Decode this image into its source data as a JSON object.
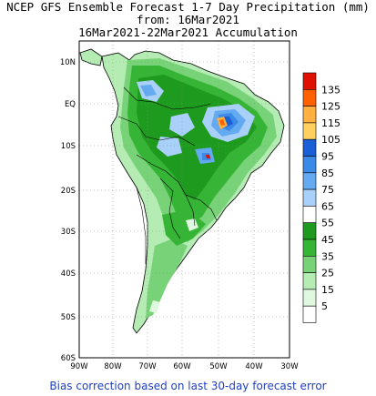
{
  "title": {
    "line1": "NCEP GFS Ensemble Forecast 1-7 Day Precipitation (mm)",
    "line2": "from: 16Mar2021",
    "line3": "16Mar2021-22Mar2021 Accumulation"
  },
  "map": {
    "lat_labels": [
      "10N",
      "EQ",
      "10S",
      "20S",
      "30S",
      "40S",
      "50S",
      "60S"
    ],
    "lon_labels": [
      "90W",
      "80W",
      "70W",
      "60W",
      "50W",
      "40W",
      "30W"
    ],
    "land_color": "#ffffff",
    "coast_color": "#000000"
  },
  "legend": {
    "labels": [
      "135",
      "125",
      "115",
      "105",
      "95",
      "85",
      "75",
      "65",
      "55",
      "45",
      "35",
      "25",
      "15",
      "5"
    ],
    "colors": [
      "#e01000",
      "#ff6000",
      "#ffb040",
      "#ffd060",
      "#1a5fd6",
      "#3c8ae8",
      "#64aaf0",
      "#a8d0f8",
      "#ffffff",
      "#1e9a1e",
      "#36b436",
      "#78d278",
      "#b4ecb4",
      "#e0f8e0",
      "#ffffff"
    ]
  },
  "footer": "Bias correction based on last 30-day forecast error"
}
